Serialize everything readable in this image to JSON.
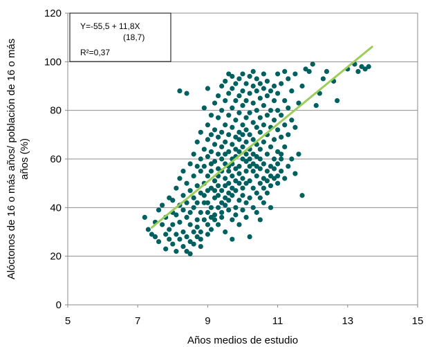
{
  "chart_data": {
    "type": "scatter",
    "title": "",
    "xlabel": "Años medios de estudio",
    "ylabel_line1": "Alóctonos de 16 o más años/ población de 16 o más",
    "ylabel_line2": "años (%)",
    "xlim": [
      5,
      15
    ],
    "ylim": [
      0,
      120
    ],
    "x_ticks": [
      "5",
      "7",
      "9",
      "11",
      "13",
      "15"
    ],
    "y_ticks": [
      "0",
      "20",
      "40",
      "60",
      "80",
      "100",
      "120"
    ],
    "grid": "horizontal",
    "legend": "none",
    "point_color": "#006060",
    "trend_color": "#9acd5a",
    "equation": {
      "line1": "Y=-55,5 + 11,8X",
      "line2": "(18,7)",
      "line3": "R²=0,37"
    },
    "trendline": {
      "intercept": -55.5,
      "slope": 11.8,
      "x_range": [
        7.4,
        13.7
      ]
    },
    "points": [
      [
        7.2,
        36
      ],
      [
        7.3,
        31
      ],
      [
        7.4,
        29
      ],
      [
        7.5,
        34
      ],
      [
        7.5,
        28
      ],
      [
        7.6,
        39
      ],
      [
        7.6,
        26
      ],
      [
        7.7,
        33
      ],
      [
        7.7,
        41
      ],
      [
        7.8,
        29
      ],
      [
        7.8,
        23
      ],
      [
        7.8,
        36
      ],
      [
        7.9,
        44
      ],
      [
        7.9,
        31
      ],
      [
        7.9,
        27
      ],
      [
        8.0,
        38
      ],
      [
        8.0,
        25
      ],
      [
        8.0,
        43
      ],
      [
        8.0,
        33
      ],
      [
        8.1,
        29
      ],
      [
        8.1,
        48
      ],
      [
        8.1,
        22
      ],
      [
        8.1,
        37
      ],
      [
        8.2,
        27
      ],
      [
        8.2,
        41
      ],
      [
        8.2,
        52
      ],
      [
        8.2,
        34
      ],
      [
        8.2,
        88
      ],
      [
        8.3,
        30
      ],
      [
        8.3,
        24
      ],
      [
        8.3,
        45
      ],
      [
        8.3,
        39
      ],
      [
        8.3,
        55
      ],
      [
        8.4,
        28
      ],
      [
        8.4,
        36
      ],
      [
        8.4,
        22
      ],
      [
        8.4,
        50
      ],
      [
        8.4,
        42
      ],
      [
        8.4,
        87
      ],
      [
        8.5,
        33
      ],
      [
        8.5,
        26
      ],
      [
        8.5,
        47
      ],
      [
        8.5,
        58
      ],
      [
        8.5,
        38
      ],
      [
        8.5,
        21
      ],
      [
        8.6,
        30
      ],
      [
        8.6,
        44
      ],
      [
        8.6,
        53
      ],
      [
        8.6,
        25
      ],
      [
        8.6,
        62
      ],
      [
        8.6,
        40
      ],
      [
        8.7,
        35
      ],
      [
        8.7,
        28
      ],
      [
        8.7,
        49
      ],
      [
        8.7,
        57
      ],
      [
        8.7,
        67
      ],
      [
        8.7,
        42
      ],
      [
        8.7,
        32
      ],
      [
        8.8,
        24
      ],
      [
        8.8,
        38
      ],
      [
        8.8,
        46
      ],
      [
        8.8,
        55
      ],
      [
        8.8,
        60
      ],
      [
        8.8,
        71
      ],
      [
        8.8,
        30
      ],
      [
        8.8,
        27
      ],
      [
        8.9,
        42
      ],
      [
        8.9,
        50
      ],
      [
        8.9,
        35
      ],
      [
        8.9,
        64
      ],
      [
        8.9,
        81
      ],
      [
        8.9,
        57
      ],
      [
        8.9,
        45
      ],
      [
        9.0,
        33
      ],
      [
        9.0,
        38
      ],
      [
        9.0,
        29
      ],
      [
        9.0,
        53
      ],
      [
        9.0,
        47
      ],
      [
        9.0,
        61
      ],
      [
        9.0,
        68
      ],
      [
        9.0,
        74
      ],
      [
        9.0,
        89
      ],
      [
        9.0,
        42
      ],
      [
        9.1,
        36
      ],
      [
        9.1,
        55
      ],
      [
        9.1,
        40
      ],
      [
        9.1,
        63
      ],
      [
        9.1,
        48
      ],
      [
        9.1,
        70
      ],
      [
        9.1,
        78
      ],
      [
        9.1,
        31
      ],
      [
        9.1,
        58
      ],
      [
        9.2,
        44
      ],
      [
        9.2,
        51
      ],
      [
        9.2,
        37
      ],
      [
        9.2,
        66
      ],
      [
        9.2,
        59
      ],
      [
        9.2,
        83
      ],
      [
        9.2,
        72
      ],
      [
        9.2,
        35
      ],
      [
        9.2,
        47
      ],
      [
        9.3,
        40
      ],
      [
        9.3,
        53
      ],
      [
        9.3,
        62
      ],
      [
        9.3,
        45
      ],
      [
        9.3,
        69
      ],
      [
        9.3,
        77
      ],
      [
        9.3,
        86
      ],
      [
        9.3,
        33
      ],
      [
        9.3,
        56
      ],
      [
        9.3,
        49
      ],
      [
        9.4,
        38
      ],
      [
        9.4,
        42
      ],
      [
        9.4,
        60
      ],
      [
        9.4,
        55
      ],
      [
        9.4,
        71
      ],
      [
        9.4,
        80
      ],
      [
        9.4,
        65
      ],
      [
        9.4,
        90
      ],
      [
        9.4,
        47
      ],
      [
        9.4,
        36
      ],
      [
        9.5,
        44
      ],
      [
        9.5,
        52
      ],
      [
        9.5,
        58
      ],
      [
        9.5,
        67
      ],
      [
        9.5,
        74
      ],
      [
        9.5,
        84
      ],
      [
        9.5,
        62
      ],
      [
        9.5,
        41
      ],
      [
        9.5,
        49
      ],
      [
        9.5,
        92
      ],
      [
        9.5,
        30
      ],
      [
        9.6,
        39
      ],
      [
        9.6,
        46
      ],
      [
        9.6,
        55
      ],
      [
        9.6,
        63
      ],
      [
        9.6,
        70
      ],
      [
        9.6,
        78
      ],
      [
        9.6,
        87
      ],
      [
        9.6,
        57
      ],
      [
        9.6,
        50
      ],
      [
        9.6,
        95
      ],
      [
        9.6,
        43
      ],
      [
        9.7,
        35
      ],
      [
        9.7,
        48
      ],
      [
        9.7,
        53
      ],
      [
        9.7,
        60
      ],
      [
        9.7,
        66
      ],
      [
        9.7,
        73
      ],
      [
        9.7,
        81
      ],
      [
        9.7,
        89
      ],
      [
        9.7,
        94
      ],
      [
        9.7,
        45
      ],
      [
        9.7,
        27
      ],
      [
        9.7,
        58
      ],
      [
        9.8,
        40
      ],
      [
        9.8,
        51
      ],
      [
        9.8,
        56
      ],
      [
        9.8,
        64
      ],
      [
        9.8,
        69
      ],
      [
        9.8,
        76
      ],
      [
        9.8,
        84
      ],
      [
        9.8,
        91
      ],
      [
        9.8,
        47
      ],
      [
        9.8,
        61
      ],
      [
        9.8,
        37
      ],
      [
        9.9,
        43
      ],
      [
        9.9,
        50
      ],
      [
        9.9,
        57
      ],
      [
        9.9,
        63
      ],
      [
        9.9,
        71
      ],
      [
        9.9,
        79
      ],
      [
        9.9,
        86
      ],
      [
        9.9,
        93
      ],
      [
        9.9,
        68
      ],
      [
        9.9,
        54
      ],
      [
        9.9,
        33
      ],
      [
        10.0,
        39
      ],
      [
        10.0,
        45
      ],
      [
        10.0,
        52
      ],
      [
        10.0,
        60
      ],
      [
        10.0,
        65
      ],
      [
        10.0,
        74
      ],
      [
        10.0,
        82
      ],
      [
        10.0,
        88
      ],
      [
        10.0,
        95
      ],
      [
        10.0,
        70
      ],
      [
        10.0,
        48
      ],
      [
        10.1,
        42
      ],
      [
        10.1,
        55
      ],
      [
        10.1,
        59
      ],
      [
        10.1,
        67
      ],
      [
        10.1,
        77
      ],
      [
        10.1,
        84
      ],
      [
        10.1,
        91
      ],
      [
        10.1,
        62
      ],
      [
        10.1,
        50
      ],
      [
        10.1,
        72
      ],
      [
        10.1,
        36
      ],
      [
        10.2,
        44
      ],
      [
        10.2,
        51
      ],
      [
        10.2,
        57
      ],
      [
        10.2,
        64
      ],
      [
        10.2,
        70
      ],
      [
        10.2,
        79
      ],
      [
        10.2,
        87
      ],
      [
        10.2,
        94
      ],
      [
        10.2,
        60
      ],
      [
        10.2,
        28
      ],
      [
        10.3,
        40
      ],
      [
        10.3,
        48
      ],
      [
        10.3,
        55
      ],
      [
        10.3,
        62
      ],
      [
        10.3,
        68
      ],
      [
        10.3,
        75
      ],
      [
        10.3,
        83
      ],
      [
        10.3,
        90
      ],
      [
        10.3,
        96
      ],
      [
        10.3,
        58
      ],
      [
        10.4,
        46
      ],
      [
        10.4,
        53
      ],
      [
        10.4,
        61
      ],
      [
        10.4,
        66
      ],
      [
        10.4,
        73
      ],
      [
        10.4,
        80
      ],
      [
        10.4,
        88
      ],
      [
        10.4,
        93
      ],
      [
        10.4,
        38
      ],
      [
        10.4,
        57
      ],
      [
        10.5,
        44
      ],
      [
        10.5,
        50
      ],
      [
        10.5,
        56
      ],
      [
        10.5,
        64
      ],
      [
        10.5,
        71
      ],
      [
        10.5,
        77
      ],
      [
        10.5,
        85
      ],
      [
        10.5,
        91
      ],
      [
        10.5,
        35
      ],
      [
        10.5,
        60
      ],
      [
        10.6,
        48
      ],
      [
        10.6,
        52
      ],
      [
        10.6,
        58
      ],
      [
        10.6,
        67
      ],
      [
        10.6,
        74
      ],
      [
        10.6,
        82
      ],
      [
        10.6,
        89
      ],
      [
        10.6,
        95
      ],
      [
        10.6,
        42
      ],
      [
        10.7,
        51
      ],
      [
        10.7,
        55
      ],
      [
        10.7,
        62
      ],
      [
        10.7,
        70
      ],
      [
        10.7,
        78
      ],
      [
        10.7,
        86
      ],
      [
        10.7,
        92
      ],
      [
        10.7,
        46
      ],
      [
        10.8,
        49
      ],
      [
        10.8,
        57
      ],
      [
        10.8,
        65
      ],
      [
        10.8,
        73
      ],
      [
        10.8,
        80
      ],
      [
        10.8,
        88
      ],
      [
        10.8,
        53
      ],
      [
        10.8,
        40
      ],
      [
        10.9,
        52
      ],
      [
        10.9,
        60
      ],
      [
        10.9,
        68
      ],
      [
        10.9,
        76
      ],
      [
        10.9,
        84
      ],
      [
        10.9,
        90
      ],
      [
        10.9,
        56
      ],
      [
        11.0,
        50
      ],
      [
        11.0,
        58
      ],
      [
        11.0,
        63
      ],
      [
        11.0,
        72
      ],
      [
        11.0,
        80
      ],
      [
        11.0,
        87
      ],
      [
        11.0,
        95
      ],
      [
        11.0,
        53
      ],
      [
        11.1,
        55
      ],
      [
        11.1,
        62
      ],
      [
        11.1,
        69
      ],
      [
        11.1,
        78
      ],
      [
        11.1,
        91
      ],
      [
        11.1,
        60
      ],
      [
        11.2,
        52
      ],
      [
        11.2,
        65
      ],
      [
        11.2,
        74
      ],
      [
        11.2,
        84
      ],
      [
        11.2,
        96
      ],
      [
        11.3,
        57
      ],
      [
        11.3,
        70
      ],
      [
        11.3,
        81
      ],
      [
        11.3,
        93
      ],
      [
        11.4,
        60
      ],
      [
        11.4,
        76
      ],
      [
        11.4,
        88
      ],
      [
        11.5,
        54
      ],
      [
        11.5,
        73
      ],
      [
        11.5,
        95
      ],
      [
        11.6,
        62
      ],
      [
        11.6,
        83
      ],
      [
        11.7,
        45
      ],
      [
        11.7,
        90
      ],
      [
        11.8,
        97
      ],
      [
        11.9,
        96
      ],
      [
        12.0,
        99
      ],
      [
        12.1,
        82
      ],
      [
        12.2,
        87
      ],
      [
        12.3,
        93
      ],
      [
        12.4,
        96
      ],
      [
        12.6,
        92
      ],
      [
        12.7,
        84
      ],
      [
        13.0,
        97
      ],
      [
        13.2,
        99
      ],
      [
        13.3,
        96
      ],
      [
        13.4,
        98
      ],
      [
        13.5,
        97
      ],
      [
        13.6,
        98
      ]
    ]
  }
}
